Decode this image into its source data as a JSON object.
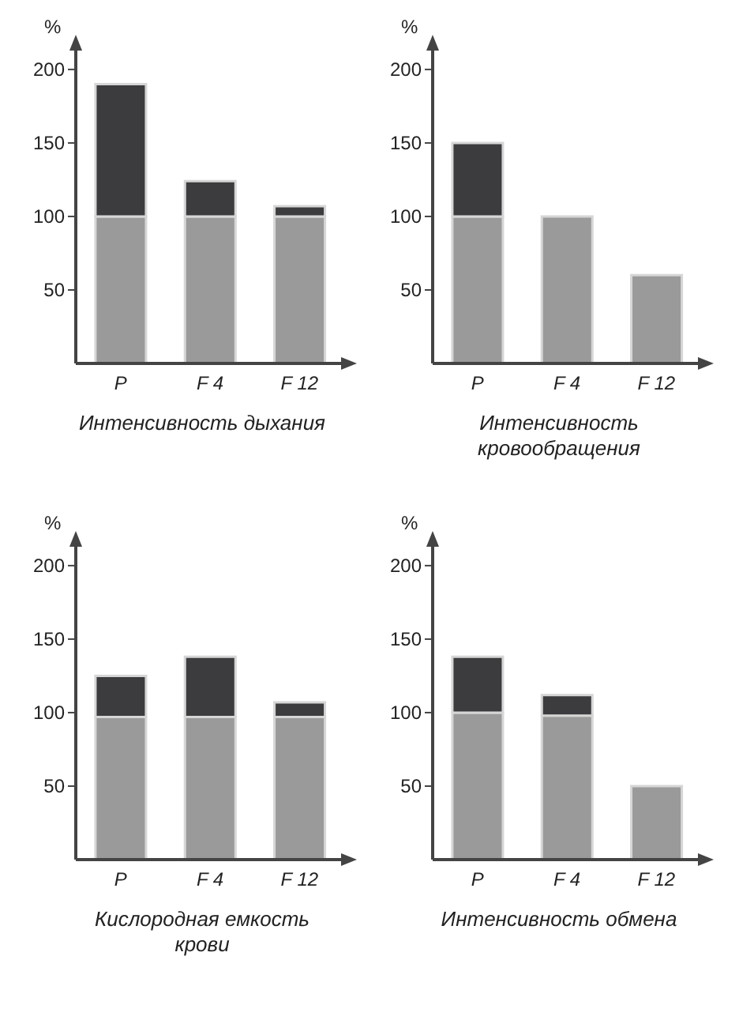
{
  "chart_data": [
    {
      "type": "bar",
      "stacked": true,
      "ylabel": "%",
      "xlabel": "Интенсивность дыхания",
      "categories": [
        "P",
        "F 4",
        "F 12"
      ],
      "ylim": [
        0,
        215
      ],
      "yticks": [
        50,
        100,
        150,
        200
      ],
      "grid": false,
      "legend": false,
      "series": [
        {
          "color": "#9a9a9a",
          "values": [
            100,
            100,
            100
          ]
        },
        {
          "color": "#3c3c3e",
          "values": [
            90,
            24,
            7
          ]
        }
      ]
    },
    {
      "type": "bar",
      "stacked": true,
      "ylabel": "%",
      "xlabel": "Интенсивность кровообращения",
      "categories": [
        "P",
        "F 4",
        "F 12"
      ],
      "ylim": [
        0,
        215
      ],
      "yticks": [
        50,
        100,
        150,
        200
      ],
      "grid": false,
      "legend": false,
      "series": [
        {
          "color": "#9a9a9a",
          "values": [
            100,
            100,
            60
          ]
        },
        {
          "color": "#3c3c3e",
          "values": [
            50,
            null,
            null
          ]
        }
      ]
    },
    {
      "type": "bar",
      "stacked": true,
      "ylabel": "%",
      "xlabel": "Кислородная емкость крови",
      "categories": [
        "P",
        "F 4",
        "F 12"
      ],
      "ylim": [
        0,
        215
      ],
      "yticks": [
        50,
        100,
        150,
        200
      ],
      "grid": false,
      "legend": false,
      "series": [
        {
          "color": "#9a9a9a",
          "values": [
            97,
            97,
            97
          ]
        },
        {
          "color": "#3c3c3e",
          "values": [
            28,
            41,
            10
          ]
        }
      ]
    },
    {
      "type": "bar",
      "stacked": true,
      "ylabel": "%",
      "xlabel": "Интенсивность обмена",
      "categories": [
        "P",
        "F 4",
        "F 12"
      ],
      "ylim": [
        0,
        215
      ],
      "yticks": [
        50,
        100,
        150,
        200
      ],
      "grid": false,
      "legend": false,
      "series": [
        {
          "color": "#9a9a9a",
          "values": [
            100,
            98,
            50
          ]
        },
        {
          "color": "#3c3c3e",
          "values": [
            38,
            14,
            null
          ]
        }
      ]
    }
  ]
}
